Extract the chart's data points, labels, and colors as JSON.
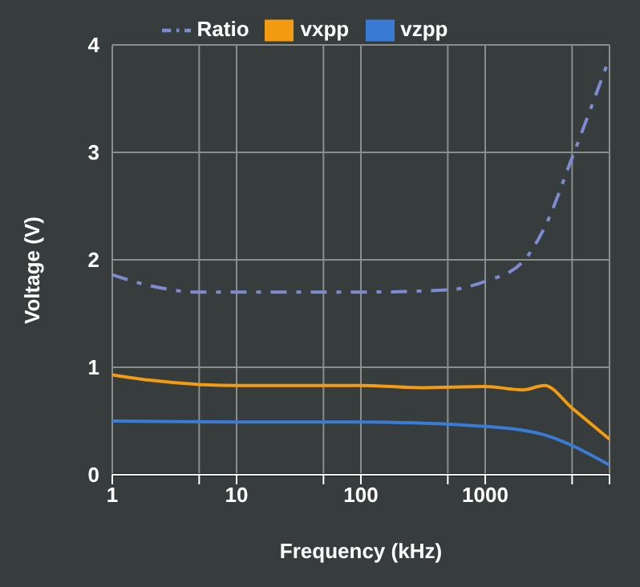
{
  "chart_data": {
    "type": "line",
    "xlabel": "Frequency (kHz)",
    "ylabel": "Voltage (V)",
    "log": "x",
    "xlim": [
      1,
      10000
    ],
    "xticks": [
      1,
      {
        "value": 5,
        "label": null
      },
      10,
      {
        "value": 50,
        "label": null
      },
      100,
      {
        "value": 500,
        "label": null
      },
      1000,
      {
        "value": 5000,
        "label": null
      },
      {
        "value": 10000,
        "label": null
      }
    ],
    "ylim": [
      0,
      4
    ],
    "yticks": [
      0,
      1,
      2,
      3,
      4
    ],
    "grid": true,
    "legend": "top",
    "series": [
      {
        "name": "vxpp",
        "color": "#f39c12",
        "x": [
          1,
          2,
          5,
          10,
          100,
          300,
          1000,
          2000,
          3000,
          5000,
          10000
        ],
        "values": [
          0.93,
          0.88,
          0.84,
          0.83,
          0.83,
          0.81,
          0.82,
          0.79,
          0.83,
          0.62,
          0.33
        ]
      },
      {
        "name": "vzpp",
        "color": "#3a7bd5",
        "x": [
          1,
          10,
          100,
          1000,
          3000,
          10000
        ],
        "values": [
          0.5,
          0.49,
          0.49,
          0.45,
          0.37,
          0.09
        ]
      },
      {
        "name": "Ratio",
        "color": "#7f8bd0",
        "line_style": "dashed",
        "x": [
          1,
          2,
          5,
          10,
          100,
          500,
          1000,
          2000,
          3000,
          5000,
          10000
        ],
        "values": [
          1.86,
          1.76,
          1.7,
          1.7,
          1.7,
          1.72,
          1.8,
          1.98,
          2.3,
          2.95,
          3.88
        ]
      }
    ]
  }
}
